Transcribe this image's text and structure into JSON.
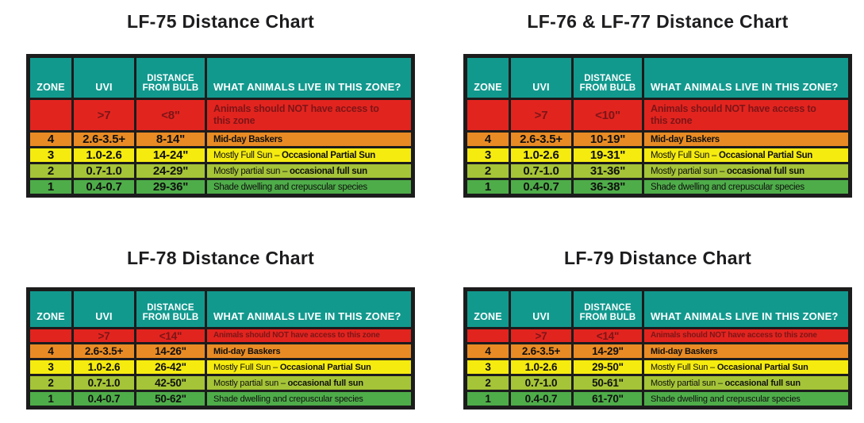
{
  "colors": {
    "page_bg": "#FFFFFF",
    "title_text": "#1D1D1F",
    "table_border": "#1C1C1C",
    "header_bg": "#12998E",
    "header_text": "#FFFFFF",
    "cell_text": "#101010",
    "zone_red_bg": "#E2241F",
    "zone_red_text": "#7D1517",
    "zone4_orange_bg": "#E98B24",
    "zone3_yellow_bg": "#F5EB0F",
    "zone2_yellowgreen_bg": "#A5C437",
    "zone1_green_bg": "#4EAD49"
  },
  "chart_data": {
    "type": "table",
    "columns": [
      "ZONE",
      "UVI",
      "DISTANCE FROM BULB",
      "WHAT ANIMALS LIVE IN THIS ZONE?"
    ],
    "tables": [
      {
        "title": "LF-75 Distance Chart",
        "rows": [
          {
            "tone": "red",
            "zone": "",
            "uvi": ">7",
            "distance": "<8\"",
            "animals_pre": "Animals should NOT have access to this zone",
            "animals_bold": ""
          },
          {
            "tone": "orange",
            "zone": "4",
            "uvi": "2.6-3.5+",
            "distance": "8-14\"",
            "animals_pre": "Mid-day Baskers",
            "animals_bold": ""
          },
          {
            "tone": "yellow",
            "zone": "3",
            "uvi": "1.0-2.6",
            "distance": "14-24\"",
            "animals_pre": "Mostly Full Sun – ",
            "animals_bold": "Occasional Partial Sun"
          },
          {
            "tone": "yellowgreen",
            "zone": "2",
            "uvi": "0.7-1.0",
            "distance": "24-29\"",
            "animals_pre": "Mostly partial sun – ",
            "animals_bold": "occasional full sun"
          },
          {
            "tone": "green",
            "zone": "1",
            "uvi": "0.4-0.7",
            "distance": "29-36\"",
            "animals_pre": "Shade dwelling and crepuscular species",
            "animals_bold": ""
          }
        ]
      },
      {
        "title": "LF-76 & LF-77 Distance Chart",
        "rows": [
          {
            "tone": "red",
            "zone": "",
            "uvi": ">7",
            "distance": "<10\"",
            "animals_pre": "Animals should NOT have access to this zone",
            "animals_bold": ""
          },
          {
            "tone": "orange",
            "zone": "4",
            "uvi": "2.6-3.5+",
            "distance": "10-19\"",
            "animals_pre": "Mid-day Baskers",
            "animals_bold": ""
          },
          {
            "tone": "yellow",
            "zone": "3",
            "uvi": "1.0-2.6",
            "distance": "19-31\"",
            "animals_pre": "Mostly Full Sun – ",
            "animals_bold": "Occasional Partial Sun"
          },
          {
            "tone": "yellowgreen",
            "zone": "2",
            "uvi": "0.7-1.0",
            "distance": "31-36\"",
            "animals_pre": "Mostly partial sun – ",
            "animals_bold": "occasional full sun"
          },
          {
            "tone": "green",
            "zone": "1",
            "uvi": "0.4-0.7",
            "distance": "36-38\"",
            "animals_pre": "Shade dwelling and crepuscular species",
            "animals_bold": ""
          }
        ]
      },
      {
        "title": "LF-78 Distance Chart",
        "rows": [
          {
            "tone": "red",
            "zone": "",
            "uvi": ">7",
            "distance": "<14\"",
            "animals_pre": "Animals should NOT have access to this zone",
            "animals_bold": ""
          },
          {
            "tone": "orange",
            "zone": "4",
            "uvi": "2.6-3.5+",
            "distance": "14-26\"",
            "animals_pre": "Mid-day Baskers",
            "animals_bold": ""
          },
          {
            "tone": "yellow",
            "zone": "3",
            "uvi": "1.0-2.6",
            "distance": "26-42\"",
            "animals_pre": "Mostly Full Sun – ",
            "animals_bold": "Occasional Partial Sun"
          },
          {
            "tone": "yellowgreen",
            "zone": "2",
            "uvi": "0.7-1.0",
            "distance": "42-50\"",
            "animals_pre": "Mostly partial sun – ",
            "animals_bold": "occasional full sun"
          },
          {
            "tone": "green",
            "zone": "1",
            "uvi": "0.4-0.7",
            "distance": "50-62\"",
            "animals_pre": "Shade dwelling and crepuscular species",
            "animals_bold": ""
          }
        ]
      },
      {
        "title": "LF-79 Distance Chart",
        "rows": [
          {
            "tone": "red",
            "zone": "",
            "uvi": ">7",
            "distance": "<14\"",
            "animals_pre": "Animals should NOT have access to this zone",
            "animals_bold": ""
          },
          {
            "tone": "orange",
            "zone": "4",
            "uvi": "2.6-3.5+",
            "distance": "14-29\"",
            "animals_pre": "Mid-day Baskers",
            "animals_bold": ""
          },
          {
            "tone": "yellow",
            "zone": "3",
            "uvi": "1.0-2.6",
            "distance": "29-50\"",
            "animals_pre": "Mostly Full Sun – ",
            "animals_bold": "Occasional Partial Sun"
          },
          {
            "tone": "yellowgreen",
            "zone": "2",
            "uvi": "0.7-1.0",
            "distance": "50-61\"",
            "animals_pre": "Mostly partial sun – ",
            "animals_bold": "occasional full sun"
          },
          {
            "tone": "green",
            "zone": "1",
            "uvi": "0.4-0.7",
            "distance": "61-70\"",
            "animals_pre": "Shade dwelling and crepuscular species",
            "animals_bold": ""
          }
        ]
      }
    ]
  }
}
